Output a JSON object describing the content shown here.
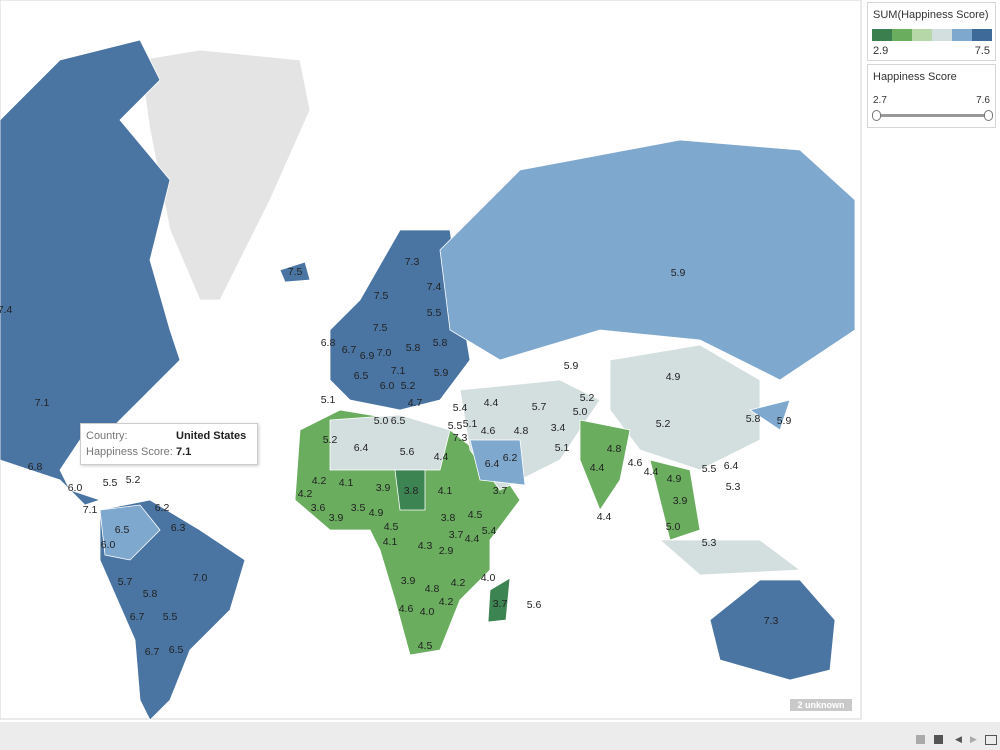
{
  "legend": {
    "title": "SUM(Happiness Score)",
    "min": "2.9",
    "max": "7.5"
  },
  "filter": {
    "title": "Happiness Score",
    "min": "2.7",
    "max": "7.6"
  },
  "tooltip": {
    "country_label": "Country:",
    "country": "United States",
    "score_label": "Happiness Score:",
    "score": "7.1"
  },
  "badge": "2 unknown",
  "labels": [
    "7.4",
    "7.1",
    "6.8",
    "6.0",
    "5.5",
    "5.2",
    "7.1",
    "6.2",
    "6.5",
    "6.3",
    "6.0",
    "5.7",
    "7.0",
    "5.8",
    "5.5",
    "6.7",
    "6.7",
    "6.5",
    "7.5",
    "7.3",
    "7.4",
    "7.5",
    "5.5",
    "7.5",
    "6.8",
    "6.7",
    "6.9",
    "7.0",
    "5.8",
    "5.8",
    "5.9",
    "6.5",
    "7.1",
    "6.0",
    "5.2",
    "5.1",
    "4.7",
    "5.4",
    "4.4",
    "5.7",
    "5.2",
    "5.0",
    "3.4",
    "4.8",
    "5.0",
    "6.5",
    "5.5",
    "5.1",
    "7.3",
    "4.6",
    "5.2",
    "6.4",
    "5.6",
    "4.4",
    "6.4",
    "6.2",
    "5.1",
    "5.9",
    "5.9",
    "4.9",
    "5.2",
    "4.8",
    "4.4",
    "4.6",
    "4.4",
    "5.8",
    "5.9",
    "5.5",
    "6.4",
    "4.9",
    "3.9",
    "5.3",
    "5.0",
    "5.3",
    "4.4",
    "4.2",
    "4.1",
    "4.2",
    "3.9",
    "3.8",
    "4.1",
    "3.7",
    "3.6",
    "3.9",
    "3.5",
    "4.9",
    "3.8",
    "4.5",
    "4.5",
    "3.7",
    "4.4",
    "5.4",
    "4.1",
    "4.3",
    "2.9",
    "4.0",
    "3.9",
    "4.8",
    "4.2",
    "3.7",
    "4.6",
    "4.0",
    "4.2",
    "5.6",
    "4.5",
    "7.3"
  ]
}
